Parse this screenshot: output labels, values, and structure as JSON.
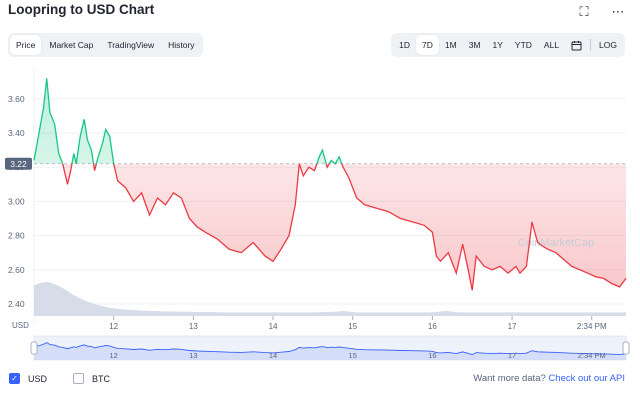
{
  "header": {
    "title": "Loopring to USD Chart",
    "fullscreen_icon": "fullscreen-icon",
    "more_icon": "more-icon"
  },
  "tabs": [
    "Price",
    "Market Cap",
    "TradingView",
    "History"
  ],
  "active_tab": "Price",
  "ranges": [
    "1D",
    "7D",
    "1M",
    "3M",
    "1Y",
    "YTD",
    "ALL"
  ],
  "active_range": "7D",
  "log_label": "LOG",
  "calendar_icon": "calendar-icon",
  "colors": {
    "up": "#16c784",
    "down": "#ea3943",
    "accent": "#3861fb",
    "volume": "#cfd6e4"
  },
  "chart_data": {
    "type": "line",
    "ylabel": "USD",
    "yticks": [
      2.4,
      2.6,
      2.8,
      3.0,
      3.2,
      3.4,
      3.6
    ],
    "ylim": [
      2.33,
      3.78
    ],
    "xticks": [
      "12",
      "13",
      "14",
      "15",
      "16",
      "17",
      "2:34 PM"
    ],
    "xlim": [
      11.0,
      18.43
    ],
    "reference_price": 3.22,
    "reference_label": "3.22",
    "watermark": "CoinMarketCap",
    "series": [
      {
        "x": [
          11.0,
          11.07,
          11.12,
          11.16,
          11.2,
          11.26,
          11.31,
          11.36,
          11.42,
          11.46,
          11.5,
          11.53,
          11.58,
          11.63,
          11.67,
          11.72,
          11.76,
          11.8,
          11.86,
          11.9,
          11.95,
          12.0,
          12.05,
          12.15,
          12.25,
          12.35,
          12.45,
          12.55,
          12.65,
          12.75,
          12.85,
          12.95,
          13.05,
          13.15,
          13.3,
          13.45,
          13.6,
          13.75,
          13.9,
          14.0,
          14.1,
          14.2,
          14.28,
          14.33,
          14.38,
          14.45,
          14.52,
          14.58,
          14.62,
          14.68,
          14.73,
          14.78,
          14.83,
          14.88,
          14.95,
          15.05,
          15.15,
          15.3,
          15.45,
          15.6,
          15.75,
          15.9,
          16.0,
          16.05,
          16.1,
          16.2,
          16.3,
          16.38,
          16.45,
          16.5,
          16.55,
          16.65,
          16.75,
          16.85,
          16.95,
          17.0,
          17.05,
          17.1,
          17.18,
          17.25,
          17.32,
          17.38,
          17.45,
          17.55,
          17.65,
          17.75,
          17.85,
          17.95,
          18.05,
          18.15,
          18.25,
          18.35,
          18.43
        ],
        "y": [
          3.24,
          3.42,
          3.55,
          3.72,
          3.52,
          3.45,
          3.28,
          3.22,
          3.1,
          3.18,
          3.28,
          3.22,
          3.38,
          3.48,
          3.36,
          3.3,
          3.18,
          3.25,
          3.34,
          3.42,
          3.38,
          3.22,
          3.12,
          3.08,
          3.0,
          3.05,
          2.92,
          3.02,
          2.98,
          3.05,
          3.02,
          2.9,
          2.85,
          2.82,
          2.78,
          2.72,
          2.7,
          2.76,
          2.68,
          2.65,
          2.72,
          2.8,
          2.98,
          3.22,
          3.15,
          3.2,
          3.18,
          3.26,
          3.3,
          3.2,
          3.24,
          3.22,
          3.26,
          3.2,
          3.14,
          3.02,
          2.98,
          2.96,
          2.94,
          2.9,
          2.88,
          2.86,
          2.82,
          2.68,
          2.65,
          2.7,
          2.58,
          2.75,
          2.6,
          2.48,
          2.68,
          2.62,
          2.6,
          2.62,
          2.58,
          2.6,
          2.62,
          2.58,
          2.62,
          2.88,
          2.76,
          2.74,
          2.72,
          2.7,
          2.66,
          2.62,
          2.6,
          2.58,
          2.56,
          2.55,
          2.52,
          2.5,
          2.55
        ]
      }
    ],
    "volume": [
      0.85,
      0.92,
      0.95,
      0.9,
      0.82,
      0.72,
      0.6,
      0.5,
      0.42,
      0.36,
      0.3,
      0.26,
      0.22,
      0.2,
      0.18,
      0.17,
      0.16,
      0.15,
      0.14,
      0.14,
      0.13,
      0.13,
      0.12,
      0.12,
      0.12,
      0.11,
      0.11,
      0.11,
      0.11,
      0.1,
      0.1,
      0.1,
      0.1,
      0.1,
      0.1,
      0.1,
      0.1,
      0.1,
      0.1,
      0.1,
      0.1,
      0.1,
      0.1,
      0.1,
      0.1,
      0.11,
      0.11,
      0.12,
      0.14,
      0.12,
      0.1,
      0.1,
      0.1,
      0.1,
      0.1,
      0.1,
      0.1,
      0.1,
      0.1,
      0.1,
      0.1,
      0.1,
      0.1,
      0.12,
      0.14,
      0.12,
      0.1,
      0.1,
      0.1,
      0.1,
      0.1,
      0.1,
      0.1,
      0.1,
      0.1,
      0.1,
      0.1,
      0.1,
      0.1,
      0.1,
      0.1,
      0.1,
      0.1,
      0.1,
      0.1,
      0.1,
      0.1,
      0.1,
      0.1,
      0.1,
      0.1,
      0.1,
      0.1
    ]
  },
  "legend": {
    "usd": "USD",
    "btc": "BTC"
  },
  "footer": {
    "more_text": "Want more data?",
    "api_link": "Check out our API"
  }
}
